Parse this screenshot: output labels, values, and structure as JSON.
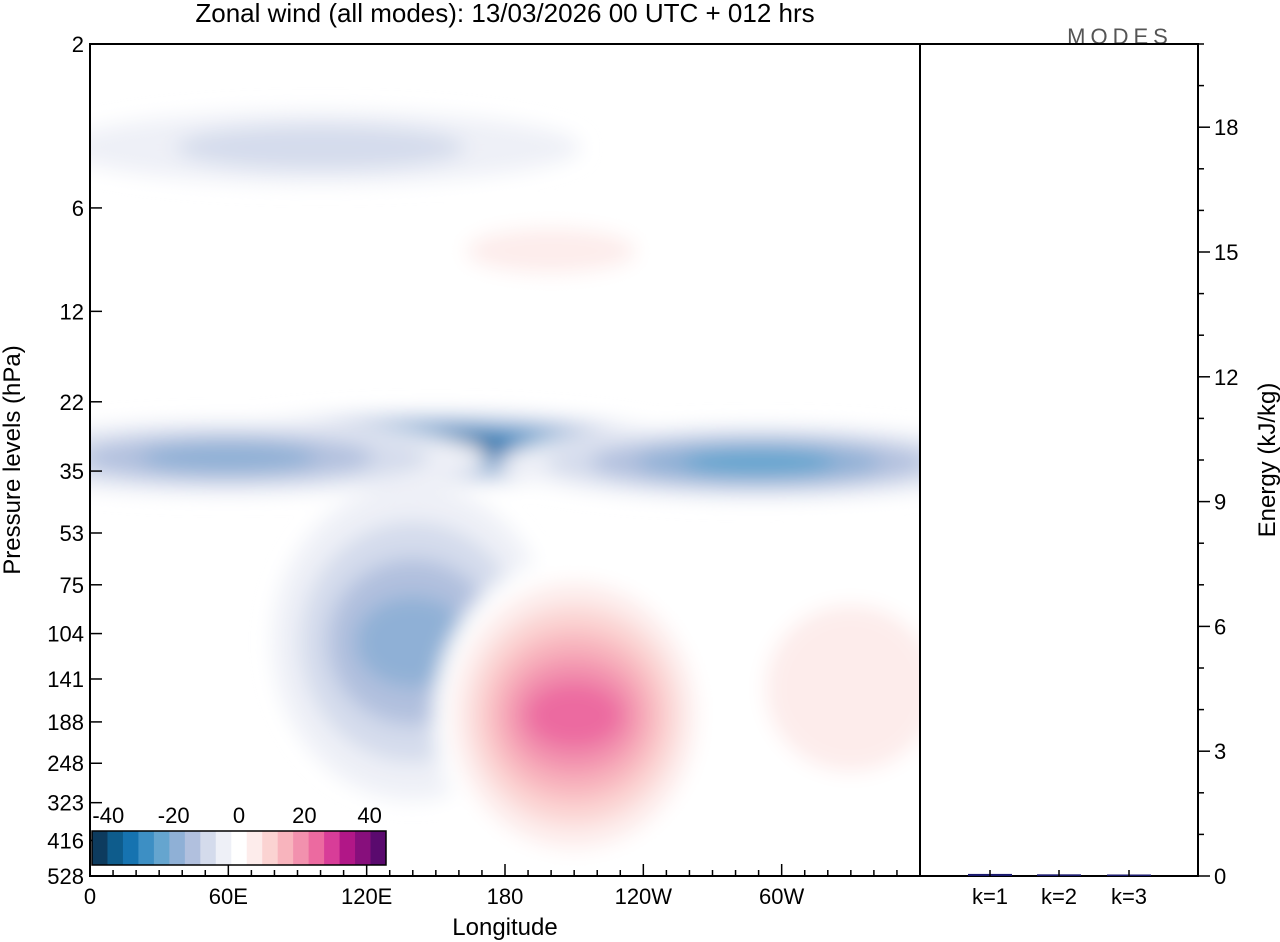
{
  "chart_data": [
    {
      "type": "heatmap",
      "title": "Zonal wind (all modes):  13/03/2026  00 UTC  + 012 hrs",
      "xlabel": "Longitude",
      "ylabel": "Pressure levels (hPa)",
      "x_ticks": [
        "0",
        "60E",
        "120E",
        "180",
        "120W",
        "60W"
      ],
      "y_levels": [
        "2",
        "6",
        "12",
        "22",
        "35",
        "53",
        "75",
        "104",
        "141",
        "188",
        "248",
        "323",
        "416",
        "528"
      ],
      "colorbar": {
        "tick_labels": [
          "-40",
          "-20",
          "0",
          "20",
          "40"
        ],
        "range": [
          -45,
          45
        ],
        "step": 5,
        "colors": [
          "#0d3b5e",
          "#0e5c8c",
          "#1673b0",
          "#3d8fc4",
          "#65a5cf",
          "#8fb0d6",
          "#b1c0de",
          "#d4dbec",
          "#eef0f7",
          "#ffffff",
          "#fdeceb",
          "#fbd3d2",
          "#f8b4bd",
          "#f291ae",
          "#ec6aa0",
          "#d83d98",
          "#b11787",
          "#870f7c",
          "#5a0a6e"
        ]
      },
      "features": [
        {
          "lon": 150,
          "lev": 30,
          "value": -40
        },
        {
          "lon": 60,
          "lev": 32,
          "value": -22
        },
        {
          "lon": 290,
          "lev": 33,
          "value": -25
        },
        {
          "lon": 140,
          "lev": 110,
          "value": -18
        },
        {
          "lon": 210,
          "lev": 180,
          "value": 32
        },
        {
          "lon": 330,
          "lev": 150,
          "value": 12
        },
        {
          "lon": 200,
          "lev": 8,
          "value": 8
        },
        {
          "lon": 100,
          "lev": 4,
          "value": -10
        }
      ]
    },
    {
      "type": "bar",
      "ylabel": "Energy (kJ/kg)",
      "categories": [
        "k=1",
        "k=2",
        "k=3"
      ],
      "values": [
        0.05,
        0.04,
        0.03
      ],
      "ylim": [
        0,
        20
      ],
      "y_ticks": [
        "0",
        "3",
        "6",
        "9",
        "12",
        "15",
        "18"
      ],
      "bar_color": "#1a1a6e"
    }
  ],
  "branding": {
    "logo_text": "MODES"
  }
}
